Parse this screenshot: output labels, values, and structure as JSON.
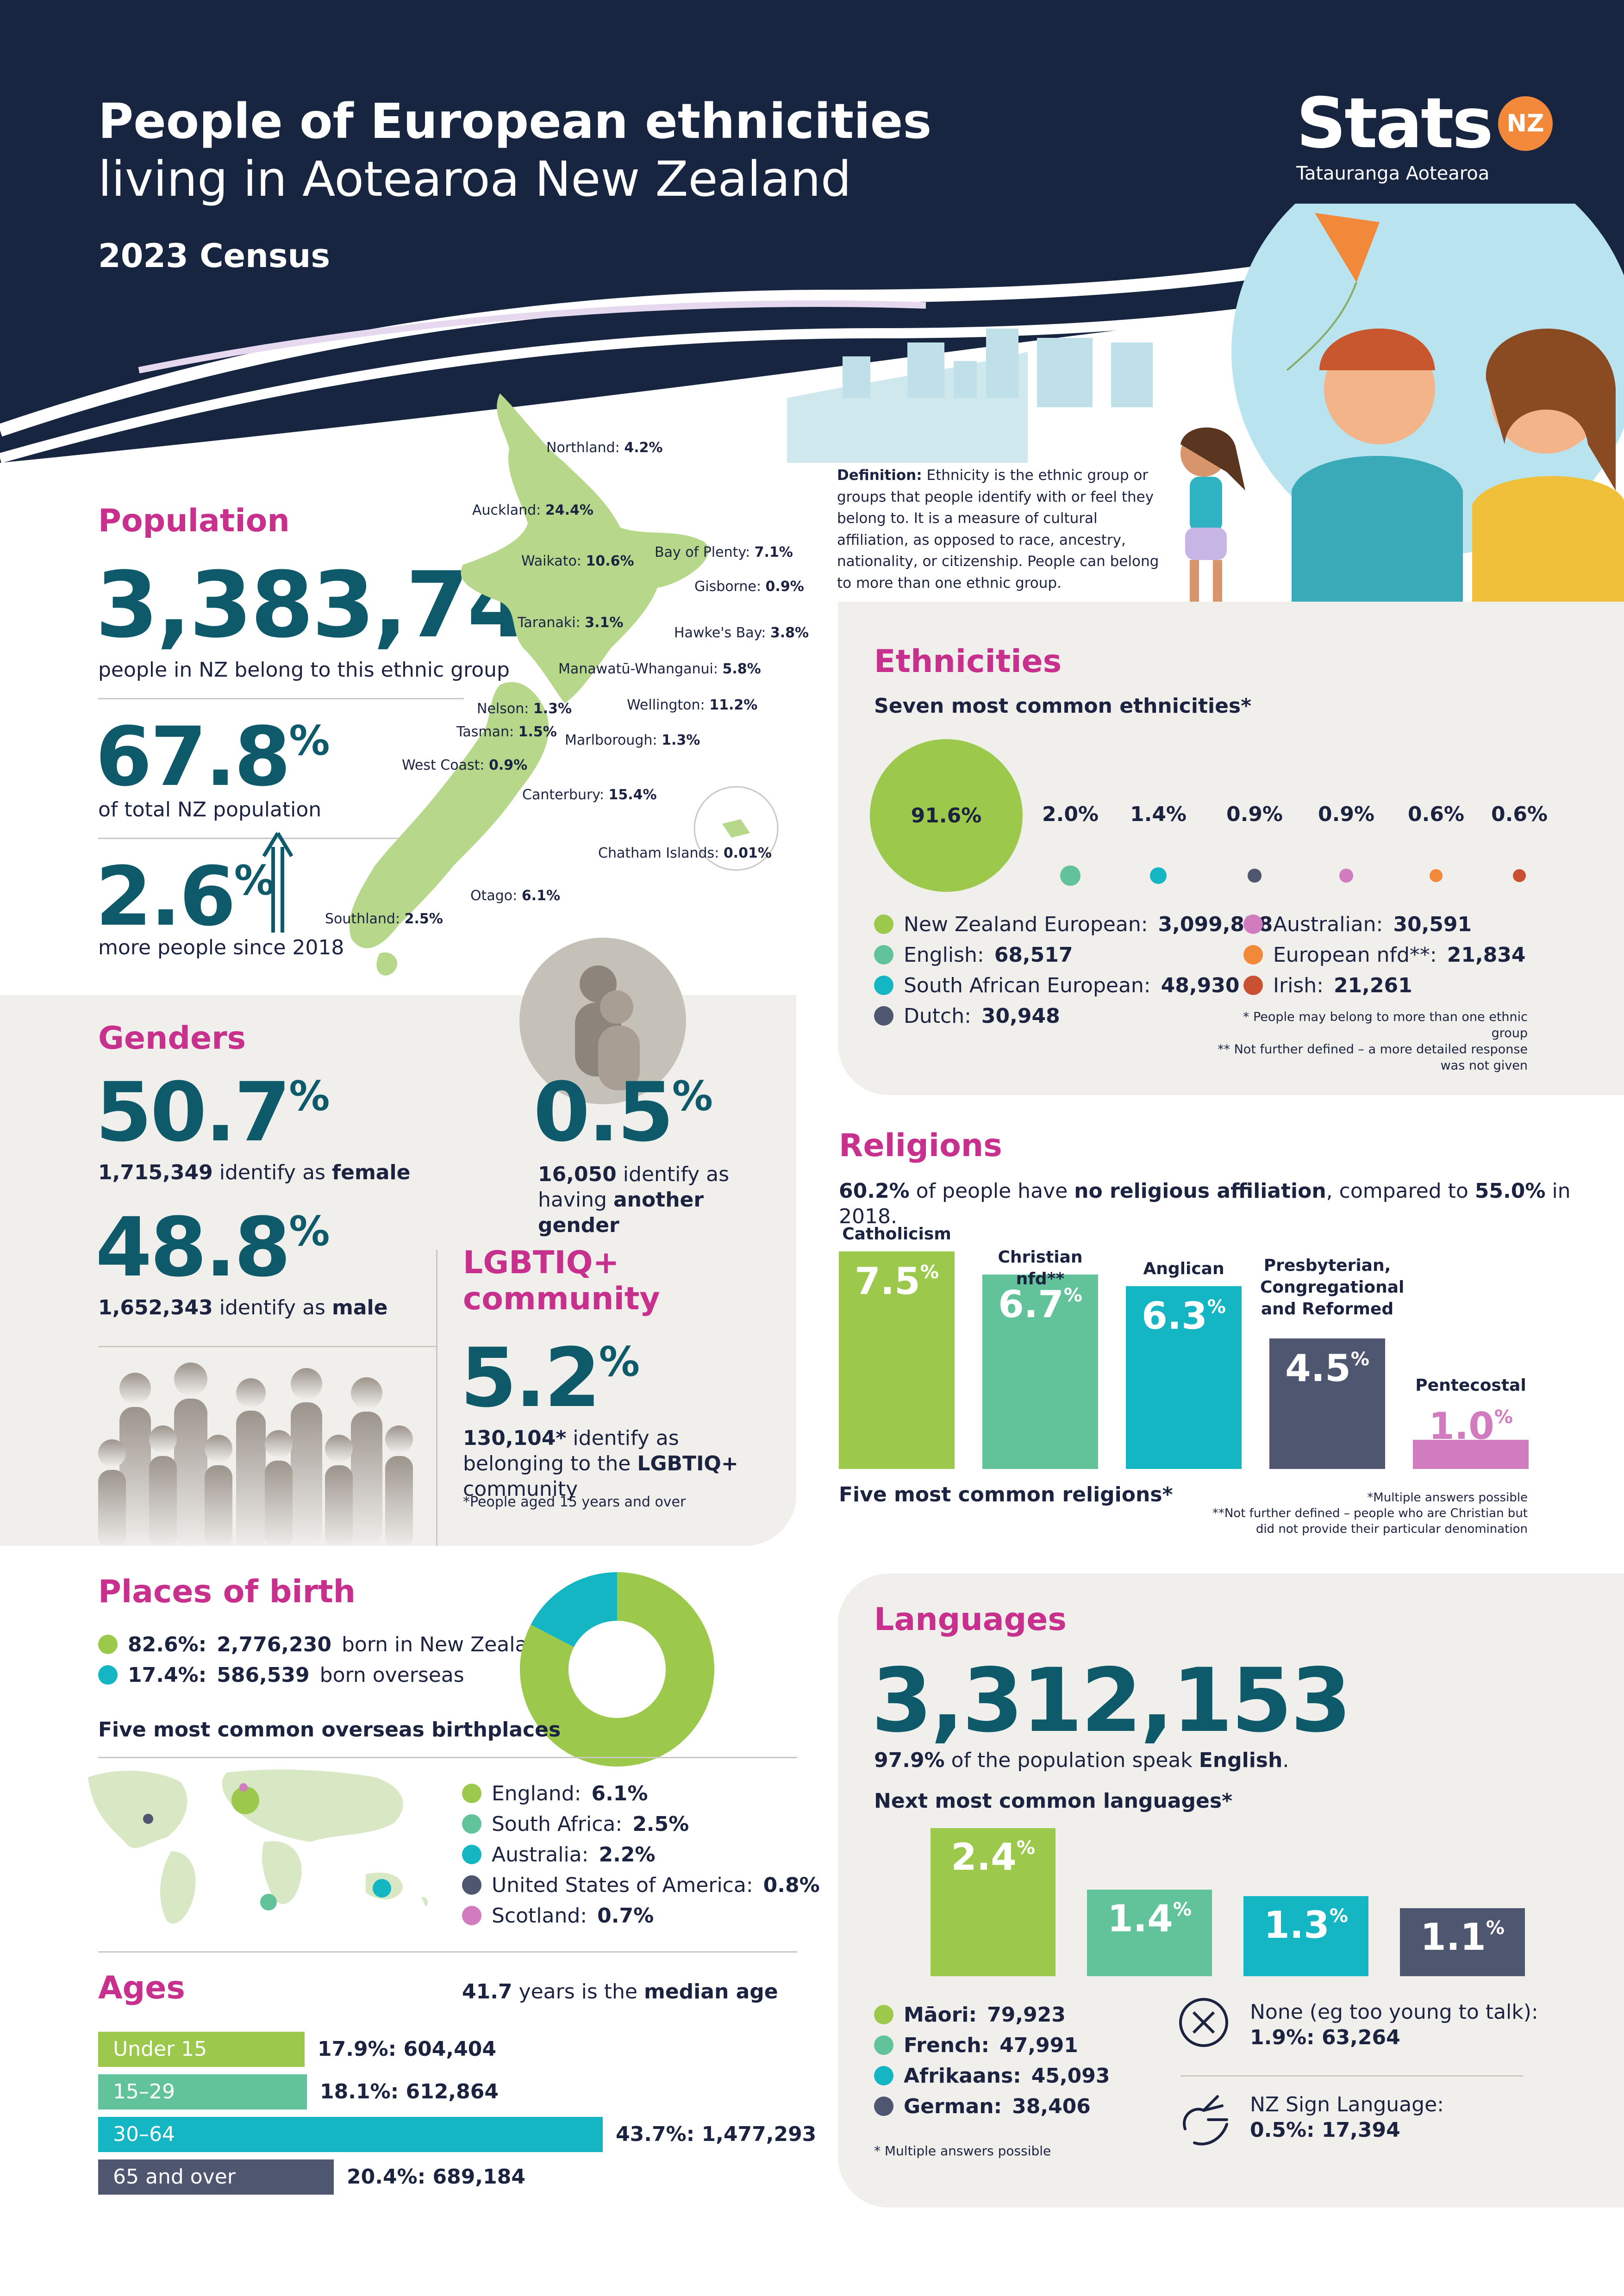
{
  "header": {
    "title_line1": "People of European ethnicities",
    "title_line2": "living in Aotearoa New Zealand",
    "subtitle": "2023 Census",
    "logo_text": "Stats",
    "logo_badge": "NZ",
    "logo_sub": "Tatauranga Aotearoa"
  },
  "definition": {
    "label": "Definition:",
    "text": "Ethnicity is the ethnic group or groups that people identify with or feel they belong to. It is a measure of cultural affiliation, as opposed to race, ancestry, nationality, or citizenship. People can belong to more than one ethnic group."
  },
  "population": {
    "heading": "Population",
    "count": "3,383,742",
    "count_caption": "people in NZ belong to this ethnic group",
    "share": "67.8",
    "share_caption": "of total NZ population",
    "growth": "2.6",
    "growth_caption": "more people since 2018",
    "pct_symbol": "%"
  },
  "regions": [
    {
      "name": "Northland:",
      "value": "4.2%"
    },
    {
      "name": "Auckland:",
      "value": "24.4%"
    },
    {
      "name": "Bay of Plenty:",
      "value": "7.1%"
    },
    {
      "name": "Waikato:",
      "value": "10.6%"
    },
    {
      "name": "Gisborne:",
      "value": "0.9%"
    },
    {
      "name": "Taranaki:",
      "value": "3.1%"
    },
    {
      "name": "Hawke's Bay:",
      "value": "3.8%"
    },
    {
      "name": "Manawatū-Whanganui:",
      "value": "5.8%"
    },
    {
      "name": "Wellington:",
      "value": "11.2%"
    },
    {
      "name": "Nelson:",
      "value": "1.3%"
    },
    {
      "name": "Tasman:",
      "value": "1.5%"
    },
    {
      "name": "Marlborough:",
      "value": "1.3%"
    },
    {
      "name": "West Coast:",
      "value": "0.9%"
    },
    {
      "name": "Canterbury:",
      "value": "15.4%"
    },
    {
      "name": "Chatham Islands:",
      "value": "0.01%"
    },
    {
      "name": "Otago:",
      "value": "6.1%"
    },
    {
      "name": "Southland:",
      "value": "2.5%"
    }
  ],
  "ethnicities": {
    "heading": "Ethnicities",
    "subheading": "Seven most common ethnicities*",
    "items": [
      {
        "name": "New Zealand European:",
        "count": "3,099,858",
        "pct": "91.6%",
        "share": 91.6,
        "color": "#9cc84b"
      },
      {
        "name": "English:",
        "count": "68,517",
        "pct": "2.0%",
        "share": 2.0,
        "color": "#62c29a"
      },
      {
        "name": "South African European:",
        "count": "48,930",
        "pct": "1.4%",
        "share": 1.4,
        "color": "#14b6c4"
      },
      {
        "name": "Dutch:",
        "count": "30,948",
        "pct": "0.9%",
        "share": 0.9,
        "color": "#4e5670"
      },
      {
        "name": "Australian:",
        "count": "30,591",
        "pct": "0.9%",
        "share": 0.9,
        "color": "#d27cc0"
      },
      {
        "name": "European nfd**:",
        "count": "21,834",
        "pct": "0.6%",
        "share": 0.6,
        "color": "#f2883a"
      },
      {
        "name": "Irish:",
        "count": "21,261",
        "pct": "0.6%",
        "share": 0.6,
        "color": "#c95031"
      }
    ],
    "note1": "* People may belong to more than one ethnic group",
    "note2": "** Not further defined – a more detailed response was not given"
  },
  "genders": {
    "heading": "Genders",
    "female_pct": "50.7",
    "female_count": "1,715,349",
    "female_text": "identify as",
    "female_word": "female",
    "male_pct": "48.8",
    "male_count": "1,652,343",
    "male_text": "identify as",
    "male_word": "male",
    "other_pct": "0.5",
    "other_count": "16,050",
    "other_text": "identify as having",
    "other_word": "another gender"
  },
  "lgbtiq": {
    "heading_line1": "LGBTIQ+",
    "heading_line2": "community",
    "pct": "5.2",
    "count": "130,104*",
    "text1": "identify as belonging to the",
    "word": "LGBTIQ+",
    "text2": "community",
    "note": "*People aged 15 years and over"
  },
  "religions": {
    "heading": "Religions",
    "summary_pct": "60.2%",
    "summary_text1": "of people have",
    "summary_bold": "no religious affiliation",
    "summary_text2": ", compared to",
    "summary_pct2018": "55.0%",
    "summary_text3": "in 2018.",
    "caption": "Five most common religions*",
    "items": [
      {
        "name": "Catholicism",
        "pct": "7.5",
        "value": 7.5,
        "color": "#9cc84b"
      },
      {
        "name": "Christian nfd**",
        "pct": "6.7",
        "value": 6.7,
        "color": "#62c29a"
      },
      {
        "name": "Anglican",
        "pct": "6.3",
        "value": 6.3,
        "color": "#14b6c4"
      },
      {
        "name": "Presbyterian, Congregational and Reformed",
        "pct": "4.5",
        "value": 4.5,
        "color": "#4e5670"
      },
      {
        "name": "Pentecostal",
        "pct": "1.0",
        "value": 1.0,
        "color": "#d27cc0"
      }
    ],
    "note1": "*Multiple answers possible",
    "note2": "**Not further defined – people who are Christian but did not provide their particular denomination"
  },
  "birth": {
    "heading": "Places of birth",
    "nz_pct": "82.6%:",
    "nz_count": "2,776,230",
    "nz_text": "born in New Zealand",
    "nz_share": 82.6,
    "overseas_pct": "17.4%:",
    "overseas_count": "586,539",
    "overseas_text": "born overseas",
    "overseas_share": 17.4,
    "subheading": "Five most common overseas birthplaces",
    "places": [
      {
        "name": "England:",
        "pct": "6.1%",
        "color": "#9cc84b"
      },
      {
        "name": "South Africa:",
        "pct": "2.5%",
        "color": "#62c29a"
      },
      {
        "name": "Australia:",
        "pct": "2.2%",
        "color": "#14b6c4"
      },
      {
        "name": "United States of America:",
        "pct": "0.8%",
        "color": "#4e5670"
      },
      {
        "name": "Scotland:",
        "pct": "0.7%",
        "color": "#d27cc0"
      }
    ]
  },
  "ages": {
    "heading": "Ages",
    "median_value": "41.7",
    "median_text": "years is the",
    "median_bold": "median age",
    "groups": [
      {
        "label": "Under 15",
        "pct": "17.9%:",
        "count": "604,404",
        "share": 17.9,
        "color": "#9cc84b"
      },
      {
        "label": "15–29",
        "pct": "18.1%:",
        "count": "612,864",
        "share": 18.1,
        "color": "#62c29a"
      },
      {
        "label": "30–64",
        "pct": "43.7%:",
        "count": "1,477,293",
        "share": 43.7,
        "color": "#14b6c4"
      },
      {
        "label": "65 and over",
        "pct": "20.4%:",
        "count": "689,184",
        "share": 20.4,
        "color": "#4e5670"
      }
    ]
  },
  "languages": {
    "heading": "Languages",
    "count": "3,312,153",
    "english_pct": "97.9%",
    "english_text": "of the population speak",
    "english_word": "English",
    "subheading": "Next most common languages*",
    "items": [
      {
        "name": "Māori:",
        "count": "79,923",
        "pct": "2.4",
        "value": 2.4,
        "color": "#9cc84b"
      },
      {
        "name": "French:",
        "count": "47,991",
        "pct": "1.4",
        "value": 1.4,
        "color": "#62c29a"
      },
      {
        "name": "Afrikaans:",
        "count": "45,093",
        "pct": "1.3",
        "value": 1.3,
        "color": "#14b6c4"
      },
      {
        "name": "German:",
        "count": "38,406",
        "pct": "1.1",
        "value": 1.1,
        "color": "#4e5670"
      }
    ],
    "none_label": "None (eg too young to talk):",
    "none_value": "1.9%: 63,264",
    "sign_label": "NZ Sign Language:",
    "sign_value": "0.5%: 17,394",
    "note": "* Multiple answers possible"
  },
  "colors": {
    "navy": "#182540",
    "magenta": "#c7308c",
    "teal": "#0e5a6b",
    "panel": "#f0efec",
    "orange": "#f2883a"
  }
}
